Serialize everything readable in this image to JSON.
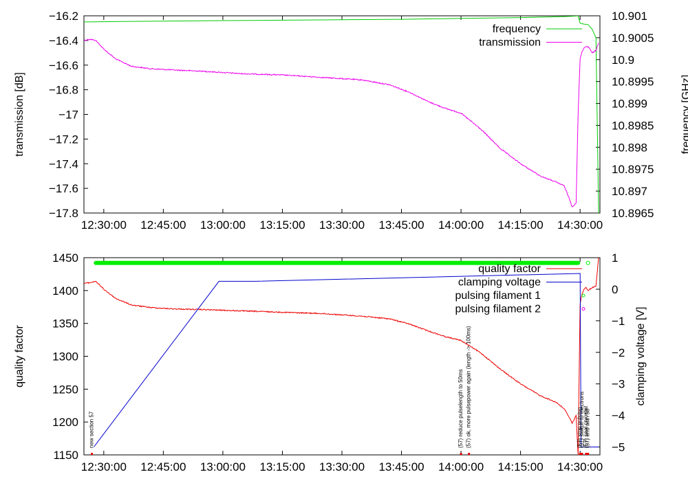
{
  "chart_data": [
    {
      "type": "line",
      "ylabel": "transmission [dB]",
      "y2label": "frequency [GHz]",
      "ylim": [
        -17.8,
        -16.2
      ],
      "y2lim": [
        10.8965,
        10.901
      ],
      "x_range": [
        "12:25:00",
        "14:35:00"
      ],
      "x_ticks": [
        "12:30:00",
        "12:45:00",
        "13:00:00",
        "13:15:00",
        "13:30:00",
        "13:45:00",
        "14:00:00",
        "14:15:00",
        "14:30:00"
      ],
      "y_ticks": [
        "−16.2",
        "−16.4",
        "−16.6",
        "−16.8",
        "−17",
        "−17.2",
        "−17.4",
        "−17.6",
        "−17.8"
      ],
      "y2_ticks": [
        "10.901",
        "10.9005",
        "10.9",
        "10.8995",
        "10.899",
        "10.8985",
        "10.898",
        "10.8975",
        "10.897",
        "10.8965"
      ],
      "legend": [
        "frequency",
        "transmission"
      ],
      "legend_position": "top-right",
      "colors": {
        "frequency": "#00cc00",
        "transmission": "#ee00ee"
      },
      "series": [
        {
          "name": "frequency",
          "axis": "y2",
          "x": [
            "12:25:00",
            "12:35:00",
            "12:45:00",
            "13:00:00",
            "13:15:00",
            "13:30:00",
            "13:45:00",
            "14:00:00",
            "14:15:00",
            "14:25:00",
            "14:28:00",
            "14:29:30",
            "14:30:00",
            "14:31:00",
            "14:32:00",
            "14:33:00",
            "14:34:00",
            "14:34:40"
          ],
          "y": [
            10.90086,
            10.90087,
            10.90088,
            10.90089,
            10.9009,
            10.90091,
            10.90092,
            10.90094,
            10.90096,
            10.90098,
            10.90099,
            10.901,
            10.90083,
            10.90081,
            10.9008,
            10.9007,
            10.9005,
            10.8965
          ]
        },
        {
          "name": "transmission",
          "axis": "y",
          "x": [
            "12:25:00",
            "12:26:30",
            "12:28:00",
            "12:30:00",
            "12:33:00",
            "12:37:00",
            "12:42:00",
            "12:48:00",
            "12:55:00",
            "13:05:00",
            "13:15:00",
            "13:25:00",
            "13:35:00",
            "13:42:00",
            "13:47:00",
            "13:52:00",
            "13:56:00",
            "14:00:00",
            "14:05:00",
            "14:10:00",
            "14:15:00",
            "14:20:00",
            "14:24:00",
            "14:26:00",
            "14:27:30",
            "14:28:00",
            "14:29:00",
            "14:29:30",
            "14:30:00",
            "14:30:30",
            "14:31:00",
            "14:31:30",
            "14:32:00",
            "14:32:30",
            "14:33:00",
            "14:34:00",
            "14:34:40"
          ],
          "y": [
            -16.4,
            -16.39,
            -16.4,
            -16.47,
            -16.55,
            -16.61,
            -16.63,
            -16.64,
            -16.65,
            -16.67,
            -16.68,
            -16.7,
            -16.72,
            -16.76,
            -16.82,
            -16.9,
            -16.95,
            -16.99,
            -17.12,
            -17.28,
            -17.4,
            -17.5,
            -17.55,
            -17.58,
            -17.7,
            -17.75,
            -17.72,
            -17.0,
            -16.55,
            -16.49,
            -16.46,
            -16.45,
            -16.45,
            -16.47,
            -16.5,
            -16.48,
            -16.42
          ]
        }
      ]
    },
    {
      "type": "line",
      "ylabel": "quality factor",
      "y2label": "clamping voltage [V]",
      "ylim": [
        1150,
        1450
      ],
      "y2lim": [
        -5.25,
        1
      ],
      "x_range": [
        "12:25:00",
        "14:35:00"
      ],
      "x_ticks": [
        "12:30:00",
        "12:45:00",
        "13:00:00",
        "13:15:00",
        "13:30:00",
        "13:45:00",
        "14:00:00",
        "14:15:00",
        "14:30:00"
      ],
      "y_ticks": [
        "1150",
        "1200",
        "1250",
        "1300",
        "1350",
        "1400",
        "1450"
      ],
      "y2_ticks": [
        "−5",
        "−4",
        "−3",
        "−2",
        "−1",
        "0",
        "1"
      ],
      "legend": [
        "quality factor",
        "clamping voltage",
        "pulsing filament 1",
        "pulsing filament 2"
      ],
      "legend_position": "top-right",
      "colors": {
        "quality factor": "#ee0000",
        "clamping voltage": "#0000cc",
        "pulsing filament 1": "#00ee00",
        "pulsing filament 2": "#ee00ee"
      },
      "series": [
        {
          "name": "quality factor",
          "axis": "y",
          "x": [
            "12:25:00",
            "12:26:30",
            "12:28:00",
            "12:30:00",
            "12:33:00",
            "12:37:00",
            "12:42:00",
            "12:48:00",
            "12:55:00",
            "13:05:00",
            "13:15:00",
            "13:25:00",
            "13:35:00",
            "13:42:00",
            "13:47:00",
            "13:52:00",
            "13:56:00",
            "14:00:00",
            "14:05:00",
            "14:10:00",
            "14:15:00",
            "14:20:00",
            "14:24:00",
            "14:26:00",
            "14:27:30",
            "14:28:00",
            "14:29:00",
            "14:29:30",
            "14:30:00",
            "14:30:30",
            "14:31:00",
            "14:31:30",
            "14:32:00",
            "14:33:00",
            "14:34:00",
            "14:34:40"
          ],
          "y": [
            1411,
            1412,
            1414,
            1402,
            1388,
            1378,
            1374,
            1372,
            1371,
            1369,
            1367,
            1365,
            1361,
            1357,
            1349,
            1338,
            1330,
            1324,
            1305,
            1280,
            1258,
            1240,
            1230,
            1220,
            1205,
            1198,
            1210,
            1150,
            1380,
            1395,
            1402,
            1405,
            1400,
            1404,
            1407,
            1450
          ]
        },
        {
          "name": "clamping voltage",
          "axis": "y2",
          "x": [
            "12:27:30",
            "12:59:00",
            "13:08:00",
            "14:30:00",
            "14:30:15",
            "14:31:00",
            "14:33:00",
            "14:34:40"
          ],
          "y": [
            -5.0,
            0.25,
            0.25,
            0.5,
            -5.0,
            -5.0,
            -5.0,
            -5.0
          ]
        },
        {
          "name": "pulsing filament 1",
          "axis": "y",
          "x_start": "12:28:00",
          "x_end": "14:29:30",
          "y": 1442,
          "extra_x": "14:32:00"
        },
        {
          "name": "pulsing filament 2",
          "axis": "y",
          "x": [],
          "y": []
        }
      ],
      "annotations": [
        {
          "x": "12:27:00",
          "text": "new section 57"
        },
        {
          "x": "14:00:00",
          "text": "(57) reduce pulselength to 50ms"
        },
        {
          "x": "14:02:00",
          "text": "(57) ok, more pulsepower again (length -> 100ms)"
        },
        {
          "x": "14:30:00",
          "text": "(57) stop pulsing"
        },
        {
          "x": "14:30:30",
          "text": "(57) switch to electrons"
        },
        {
          "x": "14:31:30",
          "text": "(57) seal cryostat"
        },
        {
          "x": "14:32:00",
          "text": "(57) end with 58"
        }
      ]
    }
  ]
}
